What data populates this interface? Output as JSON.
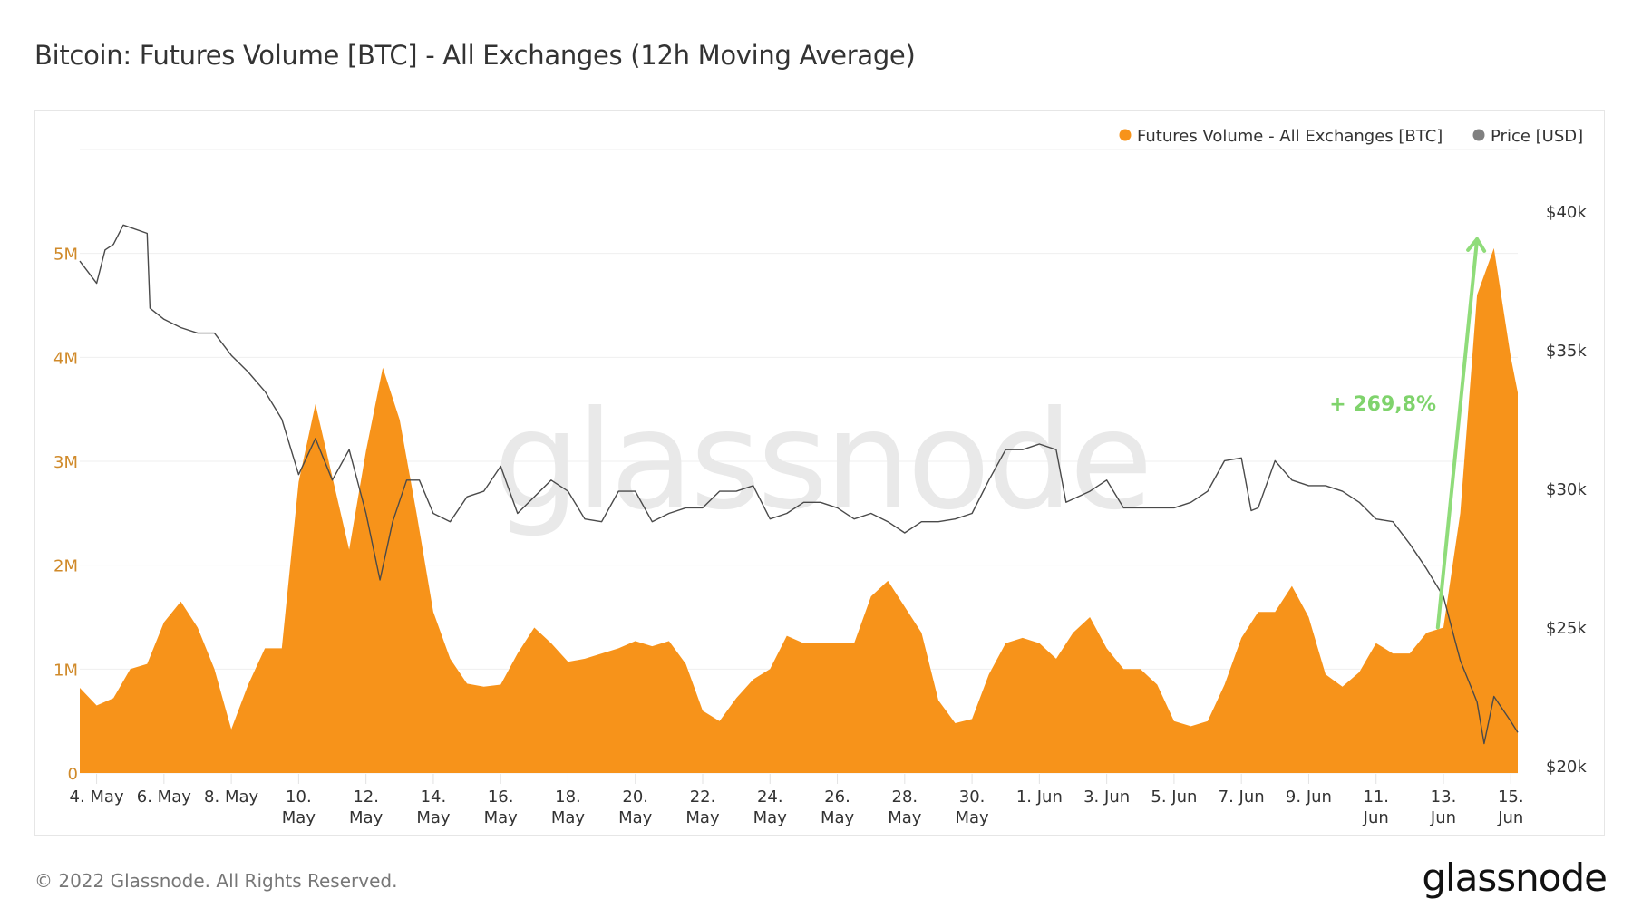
{
  "chart_data": {
    "type": "area",
    "title": "Bitcoin: Futures Volume [BTC] - All Exchanges (12h Moving Average)",
    "legend": {
      "placement": "top-right",
      "entries": [
        "Futures Volume - All Exchanges [BTC]",
        "Price [USD]"
      ]
    },
    "grid": true,
    "colors": {
      "volume": "#f7931a",
      "price": "#4a4a4a",
      "annotation": "#8fdc7a",
      "left_axis": "#d08a2a"
    },
    "left_axis": {
      "ticks": [
        "0",
        "1M",
        "2M",
        "3M",
        "4M",
        "5M"
      ],
      "tick_values": [
        0,
        1000000,
        2000000,
        3000000,
        4000000,
        5000000
      ],
      "range": [
        0,
        6000000
      ]
    },
    "right_axis": {
      "ticks": [
        "$20k",
        "$25k",
        "$30k",
        "$35k",
        "$40k"
      ],
      "tick_values": [
        20000,
        25000,
        30000,
        35000,
        40000
      ],
      "range": [
        20000,
        42500
      ],
      "log": false
    },
    "x_range": [
      "2022-05-03T12:00",
      "2022-06-15T05:00"
    ],
    "x_ticks": [
      {
        "date": "2022-05-04",
        "lines": [
          "4. May"
        ]
      },
      {
        "date": "2022-05-06",
        "lines": [
          "6. May"
        ]
      },
      {
        "date": "2022-05-08",
        "lines": [
          "8. May"
        ]
      },
      {
        "date": "2022-05-10",
        "lines": [
          "10.",
          "May"
        ]
      },
      {
        "date": "2022-05-12",
        "lines": [
          "12.",
          "May"
        ]
      },
      {
        "date": "2022-05-14",
        "lines": [
          "14.",
          "May"
        ]
      },
      {
        "date": "2022-05-16",
        "lines": [
          "16.",
          "May"
        ]
      },
      {
        "date": "2022-05-18",
        "lines": [
          "18.",
          "May"
        ]
      },
      {
        "date": "2022-05-20",
        "lines": [
          "20.",
          "May"
        ]
      },
      {
        "date": "2022-05-22",
        "lines": [
          "22.",
          "May"
        ]
      },
      {
        "date": "2022-05-24",
        "lines": [
          "24.",
          "May"
        ]
      },
      {
        "date": "2022-05-26",
        "lines": [
          "26.",
          "May"
        ]
      },
      {
        "date": "2022-05-28",
        "lines": [
          "28.",
          "May"
        ]
      },
      {
        "date": "2022-05-30",
        "lines": [
          "30.",
          "May"
        ]
      },
      {
        "date": "2022-06-01",
        "lines": [
          "1. Jun"
        ]
      },
      {
        "date": "2022-06-03",
        "lines": [
          "3. Jun"
        ]
      },
      {
        "date": "2022-06-05",
        "lines": [
          "5. Jun"
        ]
      },
      {
        "date": "2022-06-07",
        "lines": [
          "7. Jun"
        ]
      },
      {
        "date": "2022-06-09",
        "lines": [
          "9. Jun"
        ]
      },
      {
        "date": "2022-06-11",
        "lines": [
          "11.",
          "Jun"
        ]
      },
      {
        "date": "2022-06-13",
        "lines": [
          "13.",
          "Jun"
        ]
      },
      {
        "date": "2022-06-15",
        "lines": [
          "15.",
          "Jun"
        ]
      }
    ],
    "series": [
      {
        "name": "Futures Volume - All Exchanges [BTC]",
        "type": "area",
        "axis": "left",
        "points": [
          [
            "2022-05-03T12:00",
            820000
          ],
          [
            "2022-05-04T00:00",
            650000
          ],
          [
            "2022-05-04T12:00",
            720000
          ],
          [
            "2022-05-05T00:00",
            1000000
          ],
          [
            "2022-05-05T12:00",
            1050000
          ],
          [
            "2022-05-06T00:00",
            1450000
          ],
          [
            "2022-05-06T12:00",
            1650000
          ],
          [
            "2022-05-07T00:00",
            1400000
          ],
          [
            "2022-05-07T12:00",
            1000000
          ],
          [
            "2022-05-08T00:00",
            420000
          ],
          [
            "2022-05-08T12:00",
            850000
          ],
          [
            "2022-05-09T00:00",
            1200000
          ],
          [
            "2022-05-09T12:00",
            1200000
          ],
          [
            "2022-05-10T00:00",
            2800000
          ],
          [
            "2022-05-10T12:00",
            3550000
          ],
          [
            "2022-05-11T00:00",
            2850000
          ],
          [
            "2022-05-11T12:00",
            2150000
          ],
          [
            "2022-05-12T00:00",
            3100000
          ],
          [
            "2022-05-12T12:00",
            3900000
          ],
          [
            "2022-05-13T00:00",
            3400000
          ],
          [
            "2022-05-13T12:00",
            2500000
          ],
          [
            "2022-05-14T00:00",
            1550000
          ],
          [
            "2022-05-14T12:00",
            1100000
          ],
          [
            "2022-05-15T00:00",
            860000
          ],
          [
            "2022-05-15T12:00",
            830000
          ],
          [
            "2022-05-16T00:00",
            850000
          ],
          [
            "2022-05-16T12:00",
            1150000
          ],
          [
            "2022-05-17T00:00",
            1400000
          ],
          [
            "2022-05-17T12:00",
            1250000
          ],
          [
            "2022-05-18T00:00",
            1070000
          ],
          [
            "2022-05-18T12:00",
            1100000
          ],
          [
            "2022-05-19T00:00",
            1150000
          ],
          [
            "2022-05-19T12:00",
            1200000
          ],
          [
            "2022-05-20T00:00",
            1270000
          ],
          [
            "2022-05-20T12:00",
            1220000
          ],
          [
            "2022-05-21T00:00",
            1270000
          ],
          [
            "2022-05-21T12:00",
            1050000
          ],
          [
            "2022-05-22T00:00",
            600000
          ],
          [
            "2022-05-22T12:00",
            500000
          ],
          [
            "2022-05-23T00:00",
            720000
          ],
          [
            "2022-05-23T12:00",
            900000
          ],
          [
            "2022-05-24T00:00",
            1000000
          ],
          [
            "2022-05-24T12:00",
            1320000
          ],
          [
            "2022-05-25T00:00",
            1250000
          ],
          [
            "2022-05-25T12:00",
            1250000
          ],
          [
            "2022-05-26T00:00",
            1250000
          ],
          [
            "2022-05-26T12:00",
            1250000
          ],
          [
            "2022-05-27T00:00",
            1700000
          ],
          [
            "2022-05-27T12:00",
            1850000
          ],
          [
            "2022-05-28T00:00",
            1600000
          ],
          [
            "2022-05-28T12:00",
            1350000
          ],
          [
            "2022-05-29T00:00",
            700000
          ],
          [
            "2022-05-29T12:00",
            480000
          ],
          [
            "2022-05-30T00:00",
            520000
          ],
          [
            "2022-05-30T12:00",
            950000
          ],
          [
            "2022-05-31T00:00",
            1250000
          ],
          [
            "2022-05-31T12:00",
            1300000
          ],
          [
            "2022-06-01T00:00",
            1250000
          ],
          [
            "2022-06-01T12:00",
            1100000
          ],
          [
            "2022-06-02T00:00",
            1350000
          ],
          [
            "2022-06-02T12:00",
            1500000
          ],
          [
            "2022-06-03T00:00",
            1200000
          ],
          [
            "2022-06-03T12:00",
            1000000
          ],
          [
            "2022-06-04T00:00",
            1000000
          ],
          [
            "2022-06-04T12:00",
            850000
          ],
          [
            "2022-06-05T00:00",
            500000
          ],
          [
            "2022-06-05T12:00",
            450000
          ],
          [
            "2022-06-06T00:00",
            500000
          ],
          [
            "2022-06-06T12:00",
            850000
          ],
          [
            "2022-06-07T00:00",
            1300000
          ],
          [
            "2022-06-07T12:00",
            1550000
          ],
          [
            "2022-06-08T00:00",
            1550000
          ],
          [
            "2022-06-08T12:00",
            1800000
          ],
          [
            "2022-06-09T00:00",
            1500000
          ],
          [
            "2022-06-09T12:00",
            950000
          ],
          [
            "2022-06-10T00:00",
            830000
          ],
          [
            "2022-06-10T12:00",
            970000
          ],
          [
            "2022-06-11T00:00",
            1250000
          ],
          [
            "2022-06-11T12:00",
            1150000
          ],
          [
            "2022-06-12T00:00",
            1150000
          ],
          [
            "2022-06-12T12:00",
            1350000
          ],
          [
            "2022-06-13T00:00",
            1400000
          ],
          [
            "2022-06-13T12:00",
            2500000
          ],
          [
            "2022-06-14T00:00",
            4600000
          ],
          [
            "2022-06-14T12:00",
            5050000
          ],
          [
            "2022-06-15T00:00",
            4000000
          ],
          [
            "2022-06-15T05:00",
            3660000
          ]
        ]
      },
      {
        "name": "Price [USD]",
        "type": "line",
        "axis": "right",
        "points": [
          [
            "2022-05-03T12:00",
            38200
          ],
          [
            "2022-05-04T00:00",
            37400
          ],
          [
            "2022-05-04T06:00",
            38600
          ],
          [
            "2022-05-04T12:00",
            38800
          ],
          [
            "2022-05-04T19:00",
            39500
          ],
          [
            "2022-05-05T12:00",
            39200
          ],
          [
            "2022-05-05T14:00",
            36500
          ],
          [
            "2022-05-06T00:00",
            36100
          ],
          [
            "2022-05-06T12:00",
            35800
          ],
          [
            "2022-05-07T00:00",
            35600
          ],
          [
            "2022-05-07T12:00",
            35600
          ],
          [
            "2022-05-08T00:00",
            34800
          ],
          [
            "2022-05-08T12:00",
            34200
          ],
          [
            "2022-05-09T00:00",
            33500
          ],
          [
            "2022-05-09T12:00",
            32500
          ],
          [
            "2022-05-10T00:00",
            30500
          ],
          [
            "2022-05-10T12:00",
            31800
          ],
          [
            "2022-05-11T00:00",
            30300
          ],
          [
            "2022-05-11T12:00",
            31400
          ],
          [
            "2022-05-12T00:00",
            29100
          ],
          [
            "2022-05-12T10:00",
            26700
          ],
          [
            "2022-05-12T19:00",
            28800
          ],
          [
            "2022-05-13T05:00",
            30300
          ],
          [
            "2022-05-13T14:00",
            30300
          ],
          [
            "2022-05-14T00:00",
            29100
          ],
          [
            "2022-05-14T12:00",
            28800
          ],
          [
            "2022-05-15T00:00",
            29700
          ],
          [
            "2022-05-15T12:00",
            29900
          ],
          [
            "2022-05-16T00:00",
            30800
          ],
          [
            "2022-05-16T12:00",
            29100
          ],
          [
            "2022-05-17T00:00",
            29700
          ],
          [
            "2022-05-17T12:00",
            30300
          ],
          [
            "2022-05-18T00:00",
            29900
          ],
          [
            "2022-05-18T12:00",
            28900
          ],
          [
            "2022-05-19T00:00",
            28800
          ],
          [
            "2022-05-19T12:00",
            29900
          ],
          [
            "2022-05-20T00:00",
            29900
          ],
          [
            "2022-05-20T12:00",
            28800
          ],
          [
            "2022-05-21T00:00",
            29100
          ],
          [
            "2022-05-21T12:00",
            29300
          ],
          [
            "2022-05-22T00:00",
            29300
          ],
          [
            "2022-05-22T12:00",
            29900
          ],
          [
            "2022-05-23T00:00",
            29900
          ],
          [
            "2022-05-23T12:00",
            30100
          ],
          [
            "2022-05-24T00:00",
            28900
          ],
          [
            "2022-05-24T12:00",
            29100
          ],
          [
            "2022-05-25T00:00",
            29500
          ],
          [
            "2022-05-25T12:00",
            29500
          ],
          [
            "2022-05-26T00:00",
            29300
          ],
          [
            "2022-05-26T12:00",
            28900
          ],
          [
            "2022-05-27T00:00",
            29100
          ],
          [
            "2022-05-27T12:00",
            28800
          ],
          [
            "2022-05-28T00:00",
            28400
          ],
          [
            "2022-05-28T12:00",
            28800
          ],
          [
            "2022-05-29T00:00",
            28800
          ],
          [
            "2022-05-29T12:00",
            28900
          ],
          [
            "2022-05-30T00:00",
            29100
          ],
          [
            "2022-05-30T12:00",
            30300
          ],
          [
            "2022-05-31T00:00",
            31400
          ],
          [
            "2022-05-31T12:00",
            31400
          ],
          [
            "2022-06-01T00:00",
            31600
          ],
          [
            "2022-06-01T12:00",
            31400
          ],
          [
            "2022-06-01T19:00",
            29500
          ],
          [
            "2022-06-02T12:00",
            29900
          ],
          [
            "2022-06-03T00:00",
            30300
          ],
          [
            "2022-06-03T12:00",
            29300
          ],
          [
            "2022-06-04T00:00",
            29300
          ],
          [
            "2022-06-04T12:00",
            29300
          ],
          [
            "2022-06-05T00:00",
            29300
          ],
          [
            "2022-06-05T12:00",
            29500
          ],
          [
            "2022-06-06T00:00",
            29900
          ],
          [
            "2022-06-06T12:00",
            31000
          ],
          [
            "2022-06-07T00:00",
            31100
          ],
          [
            "2022-06-07T07:00",
            29200
          ],
          [
            "2022-06-07T12:00",
            29300
          ],
          [
            "2022-06-08T00:00",
            31000
          ],
          [
            "2022-06-08T12:00",
            30300
          ],
          [
            "2022-06-09T00:00",
            30100
          ],
          [
            "2022-06-09T12:00",
            30100
          ],
          [
            "2022-06-10T00:00",
            29900
          ],
          [
            "2022-06-10T12:00",
            29500
          ],
          [
            "2022-06-11T00:00",
            28900
          ],
          [
            "2022-06-11T12:00",
            28800
          ],
          [
            "2022-06-12T00:00",
            28000
          ],
          [
            "2022-06-12T12:00",
            27100
          ],
          [
            "2022-06-13T00:00",
            26100
          ],
          [
            "2022-06-13T12:00",
            23800
          ],
          [
            "2022-06-14T00:00",
            22300
          ],
          [
            "2022-06-14T05:00",
            20800
          ],
          [
            "2022-06-14T12:00",
            22500
          ],
          [
            "2022-06-15T00:00",
            21600
          ],
          [
            "2022-06-15T05:00",
            21200
          ]
        ]
      }
    ],
    "annotations": [
      {
        "text": "+ 269,8%",
        "type": "arrow",
        "from": [
          "2022-06-12T20:00",
          1400000
        ],
        "to": [
          "2022-06-14T00:00",
          5050000
        ]
      }
    ],
    "watermark": "glassnode"
  },
  "footer": {
    "copyright": "© 2022 Glassnode. All Rights Reserved.",
    "logo": "glassnode"
  }
}
